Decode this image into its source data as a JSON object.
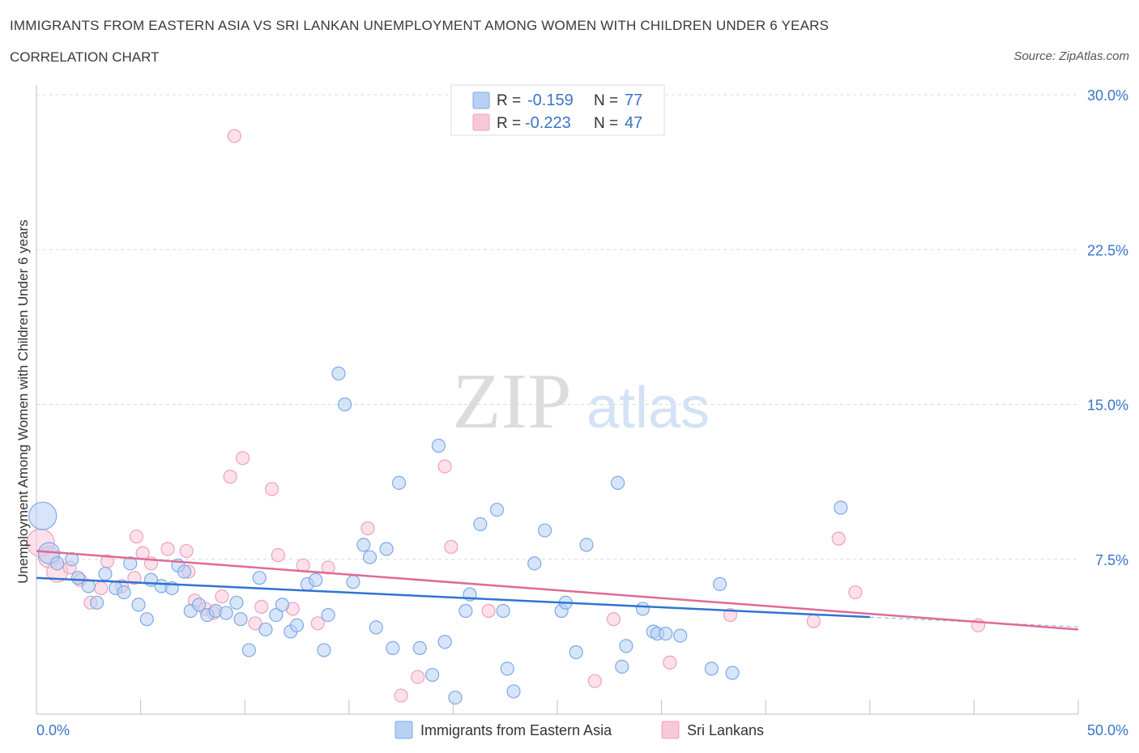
{
  "header": {
    "title": "IMMIGRANTS FROM EASTERN ASIA VS SRI LANKAN UNEMPLOYMENT AMONG WOMEN WITH CHILDREN UNDER 6 YEARS",
    "subtitle": "CORRELATION CHART",
    "source": "Source: ZipAtlas.com"
  },
  "watermark": {
    "zip": "ZIP",
    "atlas": "atlas"
  },
  "legend": {
    "r_label": "R =",
    "n_label": "N =",
    "entries": [
      {
        "r": "-0.159",
        "n": "77"
      },
      {
        "r": "-0.223",
        "n": "47"
      }
    ]
  },
  "chart_data": {
    "type": "scatter",
    "title": "IMMIGRANTS FROM EASTERN ASIA VS SRI LANKAN UNEMPLOYMENT AMONG WOMEN WITH CHILDREN UNDER 6 YEARS",
    "xlabel": "",
    "ylabel": "Unemployment Among Women with Children Under 6 years",
    "xlim": [
      0,
      50
    ],
    "ylim": [
      0,
      30
    ],
    "x_tick_labels": [
      "0.0%",
      "50.0%"
    ],
    "y_ticks": [
      7.5,
      15.0,
      22.5,
      30.0
    ],
    "y_tick_labels": [
      "7.5%",
      "15.0%",
      "22.5%",
      "30.0%"
    ],
    "grid": true,
    "legend_position": "top-center",
    "series": [
      {
        "name": "Immigrants from Eastern Asia",
        "color": "#7aaae8",
        "fill": "#b8d0f4",
        "line_color": "#2f74d0",
        "trend": {
          "x0": 0,
          "y0": 6.6,
          "x1": 40,
          "y1": 4.7
        },
        "points": [
          [
            0.3,
            9.6,
            3
          ],
          [
            0.6,
            7.8,
            2
          ],
          [
            1.0,
            7.3,
            1
          ],
          [
            1.7,
            7.5,
            1
          ],
          [
            2.0,
            6.6,
            1
          ],
          [
            2.5,
            6.2,
            1
          ],
          [
            2.9,
            5.4,
            1
          ],
          [
            3.3,
            6.8,
            1
          ],
          [
            3.8,
            6.1,
            1
          ],
          [
            4.2,
            5.9,
            1
          ],
          [
            4.5,
            7.3,
            1
          ],
          [
            4.9,
            5.3,
            1
          ],
          [
            5.3,
            4.6,
            1
          ],
          [
            5.5,
            6.5,
            1
          ],
          [
            6.0,
            6.2,
            1
          ],
          [
            6.5,
            6.1,
            1
          ],
          [
            6.8,
            7.2,
            1
          ],
          [
            7.1,
            6.9,
            1
          ],
          [
            7.4,
            5.0,
            1
          ],
          [
            7.8,
            5.3,
            1
          ],
          [
            8.2,
            4.8,
            1
          ],
          [
            8.6,
            5.0,
            1
          ],
          [
            9.1,
            4.9,
            1
          ],
          [
            9.6,
            5.4,
            1
          ],
          [
            9.8,
            4.6,
            1
          ],
          [
            10.2,
            3.1,
            1
          ],
          [
            10.7,
            6.6,
            1
          ],
          [
            11.0,
            4.1,
            1
          ],
          [
            11.5,
            4.8,
            1
          ],
          [
            11.8,
            5.3,
            1
          ],
          [
            12.2,
            4.0,
            1
          ],
          [
            12.5,
            4.3,
            1
          ],
          [
            13.0,
            6.3,
            1
          ],
          [
            13.4,
            6.5,
            1
          ],
          [
            13.8,
            3.1,
            1
          ],
          [
            14.0,
            4.8,
            1
          ],
          [
            14.5,
            16.5,
            1
          ],
          [
            14.8,
            15.0,
            1
          ],
          [
            15.2,
            6.4,
            1
          ],
          [
            15.7,
            8.2,
            1
          ],
          [
            16.0,
            7.6,
            1
          ],
          [
            16.3,
            4.2,
            1
          ],
          [
            16.8,
            8.0,
            1
          ],
          [
            17.1,
            3.2,
            1
          ],
          [
            17.4,
            11.2,
            1
          ],
          [
            18.4,
            3.2,
            1
          ],
          [
            19.0,
            1.9,
            1
          ],
          [
            19.3,
            13.0,
            1
          ],
          [
            19.6,
            3.5,
            1
          ],
          [
            20.1,
            0.8,
            1
          ],
          [
            20.6,
            5.0,
            1
          ],
          [
            20.8,
            5.8,
            1
          ],
          [
            21.3,
            9.2,
            1
          ],
          [
            22.1,
            9.9,
            1
          ],
          [
            22.4,
            5.0,
            1
          ],
          [
            22.6,
            2.2,
            1
          ],
          [
            22.9,
            1.1,
            1
          ],
          [
            23.9,
            7.3,
            1
          ],
          [
            24.4,
            8.9,
            1
          ],
          [
            25.2,
            5.0,
            1
          ],
          [
            25.4,
            5.4,
            1
          ],
          [
            25.9,
            3.0,
            1
          ],
          [
            26.4,
            8.2,
            1
          ],
          [
            27.9,
            11.2,
            1
          ],
          [
            28.1,
            2.3,
            1
          ],
          [
            28.3,
            3.3,
            1
          ],
          [
            29.1,
            5.1,
            1
          ],
          [
            29.6,
            4.0,
            1
          ],
          [
            29.8,
            3.9,
            1
          ],
          [
            30.2,
            3.9,
            1
          ],
          [
            30.9,
            3.8,
            1
          ],
          [
            32.4,
            2.2,
            1
          ],
          [
            32.8,
            6.3,
            1
          ],
          [
            33.4,
            2.0,
            1
          ],
          [
            38.6,
            10.0,
            1
          ]
        ]
      },
      {
        "name": "Sri Lankans",
        "color": "#f0a0bc",
        "fill": "#f9c8d8",
        "line_color": "#e06a94",
        "trend": {
          "x0": 0,
          "y0": 7.9,
          "x1": 50,
          "y1": 4.1
        },
        "points": [
          [
            0.2,
            8.3,
            3
          ],
          [
            0.6,
            7.6,
            2
          ],
          [
            1.0,
            6.9,
            2
          ],
          [
            1.6,
            7.1,
            1
          ],
          [
            2.1,
            6.5,
            1
          ],
          [
            2.6,
            5.4,
            1
          ],
          [
            3.1,
            6.1,
            1
          ],
          [
            3.4,
            7.4,
            1
          ],
          [
            4.1,
            6.2,
            1
          ],
          [
            4.7,
            6.6,
            1
          ],
          [
            4.8,
            8.6,
            1
          ],
          [
            5.1,
            7.8,
            1
          ],
          [
            5.5,
            7.3,
            1
          ],
          [
            6.3,
            8.0,
            1
          ],
          [
            7.2,
            7.9,
            1
          ],
          [
            7.3,
            6.9,
            1
          ],
          [
            7.6,
            5.5,
            1
          ],
          [
            8.1,
            5.1,
            1
          ],
          [
            8.5,
            4.9,
            1
          ],
          [
            8.9,
            5.7,
            1
          ],
          [
            9.3,
            11.5,
            1
          ],
          [
            9.5,
            28.0,
            1
          ],
          [
            9.9,
            12.4,
            1
          ],
          [
            10.5,
            4.4,
            1
          ],
          [
            10.8,
            5.2,
            1
          ],
          [
            11.3,
            10.9,
            1
          ],
          [
            11.6,
            7.7,
            1
          ],
          [
            12.3,
            5.1,
            1
          ],
          [
            12.8,
            7.2,
            1
          ],
          [
            13.5,
            4.4,
            1
          ],
          [
            14.0,
            7.1,
            1
          ],
          [
            15.9,
            9.0,
            1
          ],
          [
            17.5,
            0.9,
            1
          ],
          [
            18.3,
            1.8,
            1
          ],
          [
            19.6,
            12.0,
            1
          ],
          [
            19.9,
            8.1,
            1
          ],
          [
            21.7,
            5.0,
            1
          ],
          [
            26.8,
            1.6,
            1
          ],
          [
            27.7,
            4.6,
            1
          ],
          [
            30.4,
            2.5,
            1
          ],
          [
            33.3,
            4.8,
            1
          ],
          [
            37.3,
            4.5,
            1
          ],
          [
            38.5,
            8.5,
            1
          ],
          [
            39.3,
            5.9,
            1
          ],
          [
            45.2,
            4.3,
            1
          ]
        ]
      }
    ]
  },
  "bottom_legend": {
    "items": [
      "Immigrants from Eastern Asia",
      "Sri Lankans"
    ]
  }
}
